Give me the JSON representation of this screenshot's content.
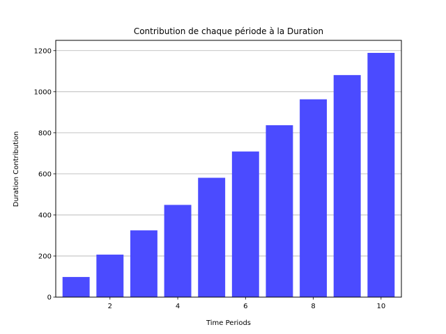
{
  "chart_data": {
    "type": "bar",
    "title": "Contribution de chaque période à la Duration",
    "xlabel": "Time Periods",
    "ylabel": "Duration Contribution",
    "x": [
      1,
      2,
      3,
      4,
      5,
      6,
      7,
      8,
      9,
      10
    ],
    "values": [
      98,
      207,
      325,
      449,
      581,
      709,
      837,
      963,
      1081,
      1189
    ],
    "xlim": [
      0.4,
      10.6
    ],
    "ylim": [
      0,
      1250
    ],
    "xticks": [
      2,
      4,
      6,
      8,
      10
    ],
    "yticks": [
      0,
      200,
      400,
      600,
      800,
      1000,
      1200
    ],
    "grid": "y",
    "bar_color": "#4b4bff"
  }
}
